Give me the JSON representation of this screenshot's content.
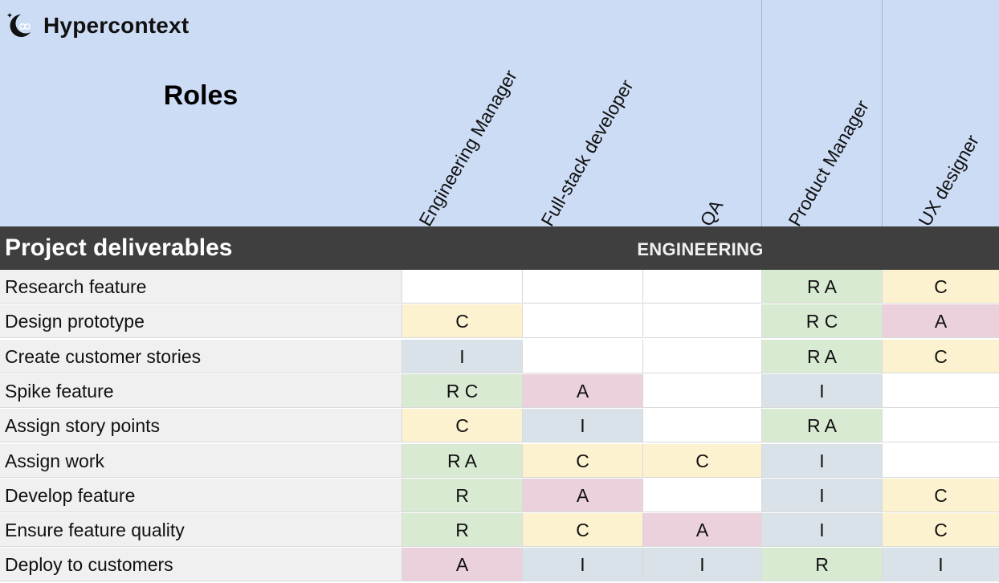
{
  "brand": {
    "name": "Hypercontext",
    "logo_icon": "moon-owl-icon"
  },
  "header": {
    "title": "Roles"
  },
  "roles": [
    "Engineering Manager",
    "Full-stack developer",
    "QA",
    "Product Manager",
    "UX designer"
  ],
  "section": {
    "title": "Project deliverables",
    "group": "ENGINEERING"
  },
  "colors": {
    "R": "#d9ead3",
    "A": "#ead1dc",
    "C": "#fdf2d0",
    "I": "#d9e2e8",
    "empty": "#ffffff"
  },
  "tasks": [
    {
      "name": "Research feature",
      "cells": [
        "",
        "",
        "",
        "R A",
        "C"
      ],
      "types": [
        "empty",
        "empty",
        "empty",
        "R",
        "C"
      ]
    },
    {
      "name": "Design prototype",
      "cells": [
        "C",
        "",
        "",
        "R C",
        "A"
      ],
      "types": [
        "C",
        "empty",
        "empty",
        "R",
        "A"
      ]
    },
    {
      "name": "Create customer stories",
      "cells": [
        "I",
        "",
        "",
        "R A",
        "C"
      ],
      "types": [
        "I",
        "empty",
        "empty",
        "R",
        "C"
      ]
    },
    {
      "name": "Spike feature",
      "cells": [
        "R C",
        "A",
        "",
        "I",
        ""
      ],
      "types": [
        "R",
        "A",
        "empty",
        "I",
        "empty"
      ]
    },
    {
      "name": "Assign story points",
      "cells": [
        "C",
        "I",
        "",
        "R A",
        ""
      ],
      "types": [
        "C",
        "I",
        "empty",
        "R",
        "empty"
      ]
    },
    {
      "name": "Assign work",
      "cells": [
        "R A",
        "C",
        "C",
        "I",
        ""
      ],
      "types": [
        "R",
        "C",
        "C",
        "I",
        "empty"
      ]
    },
    {
      "name": "Develop feature",
      "cells": [
        "R",
        "A",
        "",
        "I",
        "C"
      ],
      "types": [
        "R",
        "A",
        "empty",
        "I",
        "C"
      ]
    },
    {
      "name": "Ensure feature quality",
      "cells": [
        "R",
        "C",
        "A",
        "I",
        "C"
      ],
      "types": [
        "R",
        "C",
        "A",
        "I",
        "C"
      ]
    },
    {
      "name": "Deploy to customers",
      "cells": [
        "A",
        "I",
        "I",
        "R",
        "I"
      ],
      "types": [
        "A",
        "I",
        "I",
        "R",
        "I"
      ]
    }
  ]
}
